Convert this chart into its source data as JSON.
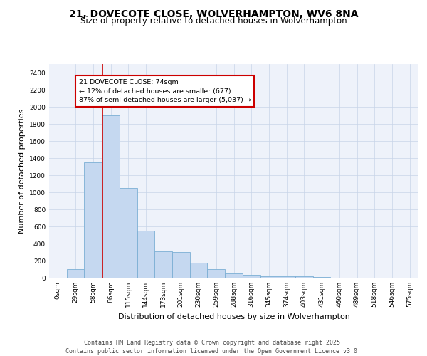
{
  "title_line1": "21, DOVECOTE CLOSE, WOLVERHAMPTON, WV6 8NA",
  "title_line2": "Size of property relative to detached houses in Wolverhampton",
  "xlabel": "Distribution of detached houses by size in Wolverhampton",
  "ylabel": "Number of detached properties",
  "bar_labels": [
    "0sqm",
    "29sqm",
    "58sqm",
    "86sqm",
    "115sqm",
    "144sqm",
    "173sqm",
    "201sqm",
    "230sqm",
    "259sqm",
    "288sqm",
    "316sqm",
    "345sqm",
    "374sqm",
    "403sqm",
    "431sqm",
    "460sqm",
    "489sqm",
    "518sqm",
    "546sqm",
    "575sqm"
  ],
  "bar_values": [
    0,
    100,
    1350,
    1900,
    1050,
    550,
    310,
    300,
    175,
    100,
    50,
    30,
    18,
    15,
    15,
    8,
    0,
    0,
    0,
    3,
    0
  ],
  "bar_color": "#c5d8f0",
  "bar_edge_color": "#7bafd4",
  "vline_color": "#cc0000",
  "vline_pos": 2.55,
  "annotation_text": "21 DOVECOTE CLOSE: 74sqm\n← 12% of detached houses are smaller (677)\n87% of semi-detached houses are larger (5,037) →",
  "annotation_box_color": "#ffffff",
  "annotation_box_edge": "#cc0000",
  "ylim": [
    0,
    2500
  ],
  "yticks": [
    0,
    200,
    400,
    600,
    800,
    1000,
    1200,
    1400,
    1600,
    1800,
    2000,
    2200,
    2400
  ],
  "background_color": "#eef2fa",
  "grid_color": "#c8d4e8",
  "footer_text": "Contains HM Land Registry data © Crown copyright and database right 2025.\nContains public sector information licensed under the Open Government Licence v3.0.",
  "title_fontsize": 10,
  "subtitle_fontsize": 8.5,
  "tick_fontsize": 6.5,
  "label_fontsize": 8,
  "footer_fontsize": 6
}
